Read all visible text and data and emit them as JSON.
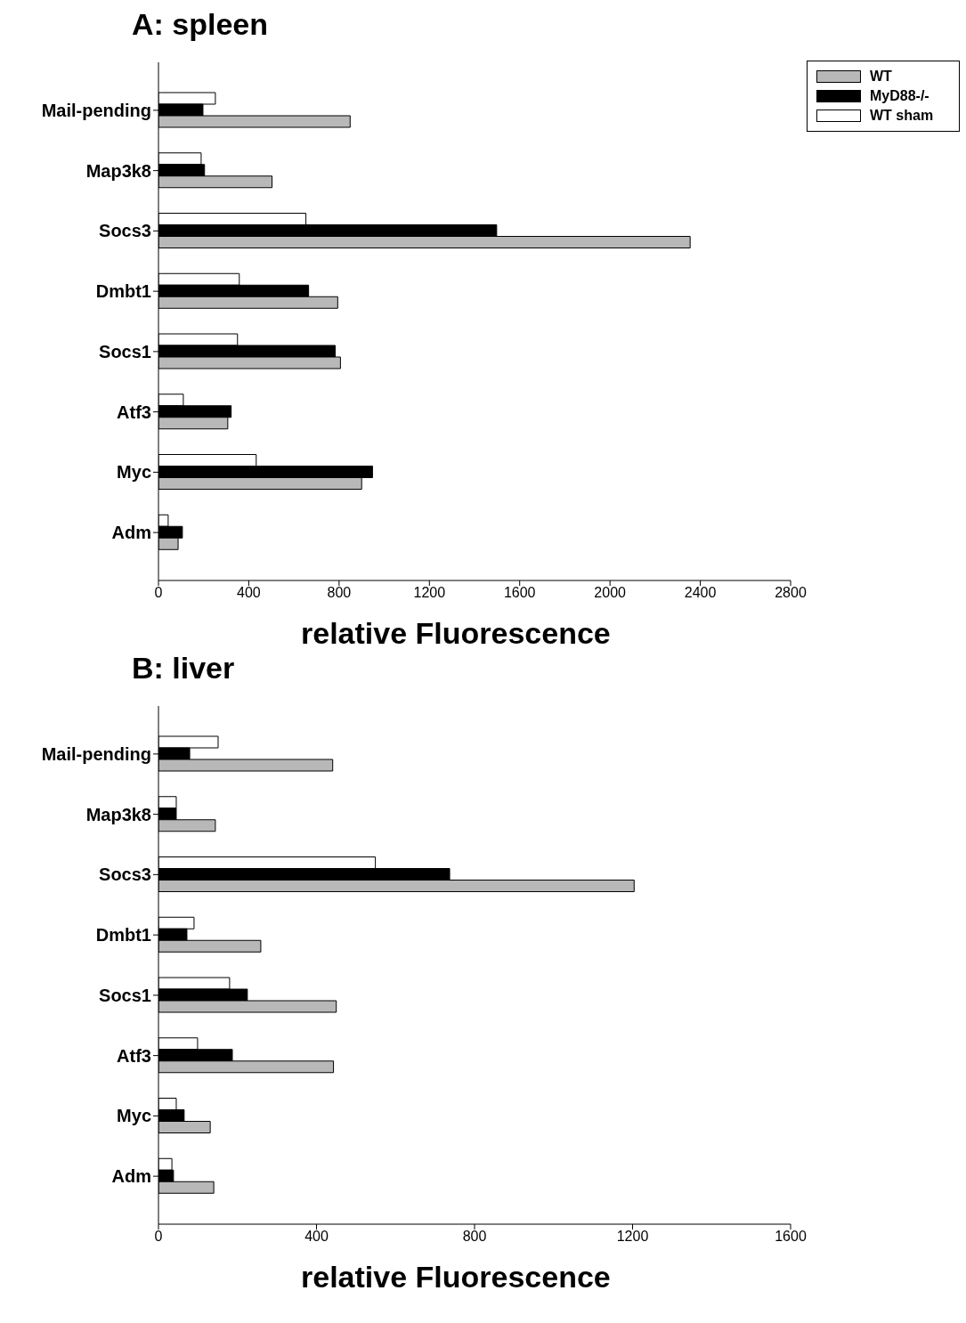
{
  "chart_data": [
    {
      "type": "bar",
      "orientation": "horizontal",
      "title": "A: spleen",
      "xlabel": "relative Fluorescence",
      "categories": [
        "Mail-pending",
        "Map3k8",
        "Socs3",
        "Dmbt1",
        "Socs1",
        "Atf3",
        "Myc",
        "Adm"
      ],
      "xlim": [
        0,
        2800
      ],
      "xticks": [
        0,
        400,
        800,
        1200,
        1600,
        2000,
        2400,
        2800
      ],
      "grid": false,
      "legend": "top right",
      "series": [
        {
          "name": "WT sham",
          "color": "#ffffff",
          "values": [
            252,
            189,
            653,
            358,
            350,
            110,
            433,
            43
          ]
        },
        {
          "name": "MyD88-/-",
          "color": "#000000",
          "values": [
            197,
            204,
            1498,
            665,
            783,
            322,
            948,
            106
          ]
        },
        {
          "name": "WT",
          "color": "#b8b8b8",
          "values": [
            849,
            503,
            2355,
            794,
            806,
            307,
            900,
            87
          ]
        }
      ]
    },
    {
      "type": "bar",
      "orientation": "horizontal",
      "title": "B: liver",
      "xlabel": "relative Fluorescence",
      "categories": [
        "Mail-pending",
        "Map3k8",
        "Socs3",
        "Dmbt1",
        "Socs1",
        "Atf3",
        "Myc",
        "Adm"
      ],
      "xlim": [
        0,
        1600
      ],
      "xticks": [
        0,
        400,
        800,
        1200,
        1600
      ],
      "grid": false,
      "series": [
        {
          "color": "#ffffff",
          "values": [
            151,
            45,
            549,
            90,
            180,
            99,
            45,
            34
          ]
        },
        {
          "color": "#000000",
          "values": [
            79,
            45,
            737,
            72,
            225,
            187,
            65,
            38
          ]
        },
        {
          "color": "#b8b8b8",
          "values": [
            441,
            144,
            1204,
            259,
            450,
            443,
            131,
            140
          ]
        }
      ]
    }
  ]
}
